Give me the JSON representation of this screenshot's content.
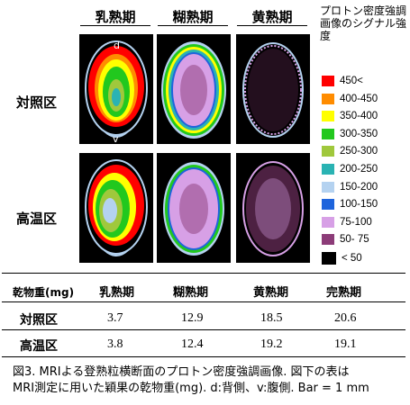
{
  "stages": [
    "乳熟期",
    "糊熟期",
    "黄熟期"
  ],
  "rows": [
    "対照区",
    "高温区"
  ],
  "panel_marks": {
    "dorsal": "d",
    "ventral": "v"
  },
  "legend": {
    "title": "プロトン密度強調画像のシグナル強度",
    "items": [
      {
        "label": "450<",
        "color": "#ff0000"
      },
      {
        "label": "400-450",
        "color": "#ff8c00"
      },
      {
        "label": "350-400",
        "color": "#ffff00"
      },
      {
        "label": "300-350",
        "color": "#22c81e"
      },
      {
        "label": "250-300",
        "color": "#a0c83c"
      },
      {
        "label": "200-250",
        "color": "#2ab3b3"
      },
      {
        "label": "150-200",
        "color": "#b4d2f0"
      },
      {
        "label": "100-150",
        "color": "#1e64dc"
      },
      {
        "label": "75-100",
        "color": "#d7a0e6"
      },
      {
        "label": "50- 75",
        "color": "#8c3c78"
      },
      {
        "label": "< 50",
        "color": "#000000"
      }
    ]
  },
  "table": {
    "header": [
      "乾物重(mg)",
      "乳熟期",
      "糊熟期",
      "黄熟期",
      "完熟期"
    ],
    "rows": [
      {
        "label": "対照区",
        "values": [
          "3.7",
          "12.9",
          "18.5",
          "20.6"
        ]
      },
      {
        "label": "高温区",
        "values": [
          "3.8",
          "12.4",
          "19.2",
          "19.1"
        ]
      }
    ]
  },
  "caption": {
    "line1": "図3. MRIよる登熟粒横断面のプロトン密度強調画像. 図下の表は",
    "line2": "MRI測定に用いた穎果の乾物重(mg). d:背側、v:腹側.   Bar = 1 mm"
  }
}
